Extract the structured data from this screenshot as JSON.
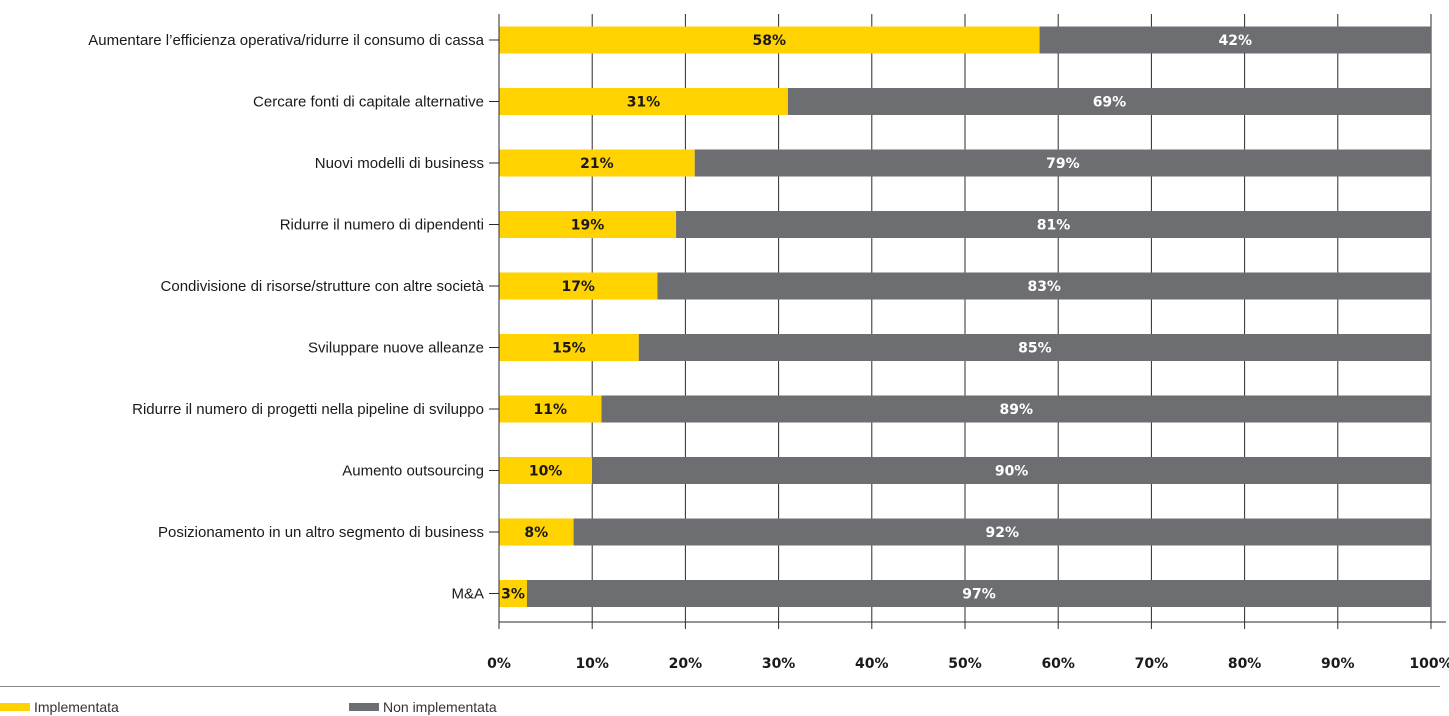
{
  "chart_data": {
    "type": "bar",
    "orientation": "horizontal",
    "stacked": true,
    "categories": [
      "Aumentare l’efficienza operativa/ridurre il consumo di cassa",
      "Cercare fonti di capitale alternative",
      "Nuovi modelli di business",
      "Ridurre il numero di dipendenti",
      "Condivisione di risorse/strutture con altre società",
      "Sviluppare nuove alleanze",
      "Ridurre il numero di progetti nella pipeline di sviluppo",
      "Aumento outsourcing",
      "Posizionamento in un altro segmento di business",
      "M&A"
    ],
    "series": [
      {
        "name": "Implementata",
        "color": "#ffd200",
        "label_color": "#1a1a1a",
        "values": [
          58,
          31,
          21,
          19,
          17,
          15,
          11,
          10,
          8,
          3
        ]
      },
      {
        "name": "Non implementata",
        "color": "#6d6e71",
        "label_color": "#ffffff",
        "values": [
          42,
          69,
          79,
          81,
          83,
          85,
          89,
          90,
          92,
          97
        ]
      }
    ],
    "value_labels": {
      "Implementata": [
        "58%",
        "31%",
        "21%",
        "19%",
        "17%",
        "15%",
        "11%",
        "10%",
        "8%",
        "3%"
      ],
      "Non implementata": [
        "42%",
        "69%",
        "79%",
        "81%",
        "83%",
        "85%",
        "89%",
        "90%",
        "92%",
        "97%"
      ]
    },
    "xlim": [
      0,
      100
    ],
    "xticks": [
      0,
      10,
      20,
      30,
      40,
      50,
      60,
      70,
      80,
      90,
      100
    ],
    "xtick_labels": [
      "0%",
      "10%",
      "20%",
      "30%",
      "40%",
      "50%",
      "60%",
      "70%",
      "80%",
      "90%",
      "100%"
    ],
    "grid": "vertical",
    "legend_position": "bottom-left"
  }
}
